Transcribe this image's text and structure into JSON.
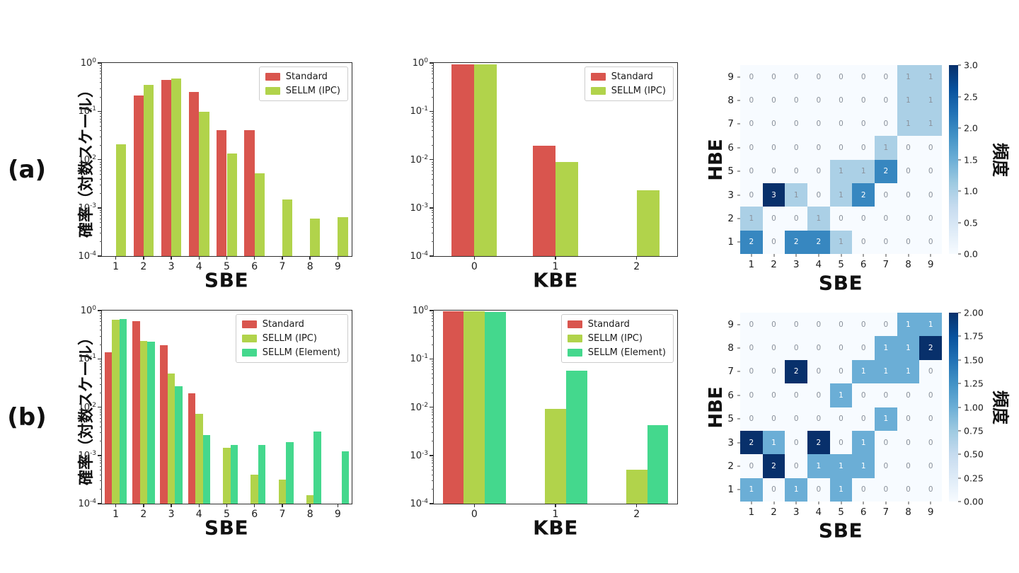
{
  "figure": {
    "row_a_label": "(a)",
    "row_b_label": "(b)",
    "ylabel_prob": "確率（対数スケール）"
  },
  "colors": {
    "standard_red": "#d9554e",
    "sellm_ipc_green": "#b1d34b",
    "sellm_element_teal": "#44d88d",
    "heat_text_dark": "#ffffff",
    "heat_text_light": "#8a919b",
    "blues_scale": [
      [
        0.0,
        "#f7fbff"
      ],
      [
        0.125,
        "#deebf7"
      ],
      [
        0.25,
        "#c6dbef"
      ],
      [
        0.375,
        "#9ecae1"
      ],
      [
        0.5,
        "#6baed6"
      ],
      [
        0.625,
        "#4292c6"
      ],
      [
        0.75,
        "#2171b5"
      ],
      [
        0.875,
        "#08519c"
      ],
      [
        1.0,
        "#08306b"
      ]
    ]
  },
  "chart_data": [
    {
      "id": "a_sbe",
      "type": "bar",
      "yscale": "log",
      "xlabel": "SBE",
      "ylabel": "確率（対数スケール）",
      "ylim": [
        0.0001,
        1
      ],
      "ytick_exponents": [
        0,
        -1,
        -2,
        -3,
        -4
      ],
      "categories": [
        "1",
        "2",
        "3",
        "4",
        "5",
        "6",
        "7",
        "8",
        "9"
      ],
      "bar_group_fraction": 0.73,
      "legend_position": "upper right",
      "series": [
        {
          "name": "Standard",
          "color": "#d9554e",
          "values": [
            0,
            0.21,
            0.44,
            0.25,
            0.04,
            0.04,
            0,
            0,
            0
          ]
        },
        {
          "name": "SELLM (IPC)",
          "color": "#b1d34b",
          "values": [
            0.021,
            0.35,
            0.48,
            0.098,
            0.0135,
            0.0052,
            0.0015,
            0.0006,
            0.00063
          ]
        }
      ]
    },
    {
      "id": "a_kbe",
      "type": "bar",
      "yscale": "log",
      "xlabel": "KBE",
      "ylabel": "確率（対数スケール）",
      "ylim": [
        0.0001,
        1
      ],
      "ytick_exponents": [
        0,
        -1,
        -2,
        -3,
        -4
      ],
      "categories": [
        "0",
        "1",
        "2"
      ],
      "bar_group_fraction": 0.56,
      "legend_position": "upper right",
      "series": [
        {
          "name": "Standard",
          "color": "#d9554e",
          "values": [
            0.95,
            0.019,
            0
          ]
        },
        {
          "name": "SELLM (IPC)",
          "color": "#b1d34b",
          "values": [
            0.95,
            0.0088,
            0.0023
          ]
        }
      ]
    },
    {
      "id": "a_heatmap",
      "type": "heatmap",
      "xlabel": "SBE",
      "ylabel": "HBE",
      "colorbar_label": "頻度",
      "x_labels": [
        "1",
        "2",
        "3",
        "4",
        "5",
        "6",
        "7",
        "8",
        "9"
      ],
      "y_labels": [
        "9",
        "8",
        "7",
        "6",
        "5",
        "3",
        "2",
        "1"
      ],
      "vmax": 3,
      "colorbar_ticks": [
        "3.0",
        "2.5",
        "2.0",
        "1.5",
        "1.0",
        "0.5",
        "0.0"
      ],
      "values": [
        [
          0,
          0,
          0,
          0,
          0,
          0,
          0,
          1,
          1
        ],
        [
          0,
          0,
          0,
          0,
          0,
          0,
          0,
          1,
          1
        ],
        [
          0,
          0,
          0,
          0,
          0,
          0,
          0,
          1,
          1
        ],
        [
          0,
          0,
          0,
          0,
          0,
          0,
          1,
          0,
          0
        ],
        [
          0,
          0,
          0,
          0,
          1,
          1,
          2,
          0,
          0
        ],
        [
          0,
          3,
          1,
          0,
          1,
          2,
          0,
          0,
          0
        ],
        [
          1,
          0,
          0,
          1,
          0,
          0,
          0,
          0,
          0
        ],
        [
          2,
          0,
          2,
          2,
          1,
          0,
          0,
          0,
          0
        ]
      ]
    },
    {
      "id": "b_sbe",
      "type": "bar",
      "yscale": "log",
      "xlabel": "SBE",
      "ylabel": "確率（対数スケール）",
      "ylim": [
        0.0001,
        1
      ],
      "ytick_exponents": [
        0,
        -1,
        -2,
        -3,
        -4
      ],
      "categories": [
        "1",
        "2",
        "3",
        "4",
        "5",
        "6",
        "7",
        "8",
        "9"
      ],
      "bar_group_fraction": 0.8,
      "legend_position": "upper right",
      "series": [
        {
          "name": "Standard",
          "color": "#d9554e",
          "values": [
            0.135,
            0.61,
            0.19,
            0.019,
            0,
            0,
            0,
            0,
            0
          ]
        },
        {
          "name": "SELLM (IPC)",
          "color": "#b1d34b",
          "values": [
            0.64,
            0.235,
            0.05,
            0.0072,
            0.00145,
            0.0004,
            0.00031,
            0.00015,
            0
          ]
        },
        {
          "name": "SELLM (Element)",
          "color": "#44d88d",
          "values": [
            0.67,
            0.225,
            0.027,
            0.0026,
            0.00165,
            0.00165,
            0.0019,
            0.0031,
            0.0012
          ]
        }
      ]
    },
    {
      "id": "b_kbe",
      "type": "bar",
      "yscale": "log",
      "xlabel": "KBE",
      "ylabel": "確率（対数スケール）",
      "ylim": [
        0.0001,
        1
      ],
      "ytick_exponents": [
        0,
        -1,
        -2,
        -3,
        -4
      ],
      "categories": [
        "0",
        "1",
        "2"
      ],
      "bar_group_fraction": 0.78,
      "legend_position": "upper right",
      "series": [
        {
          "name": "Standard",
          "color": "#d9554e",
          "values": [
            0.97,
            0,
            0
          ]
        },
        {
          "name": "SELLM (IPC)",
          "color": "#b1d34b",
          "values": [
            0.96,
            0.0092,
            0.00051
          ]
        },
        {
          "name": "SELLM (Element)",
          "color": "#44d88d",
          "values": [
            0.93,
            0.057,
            0.0043
          ]
        }
      ]
    },
    {
      "id": "b_heatmap",
      "type": "heatmap",
      "xlabel": "SBE",
      "ylabel": "HBE",
      "colorbar_label": "頻度",
      "x_labels": [
        "1",
        "2",
        "3",
        "4",
        "5",
        "6",
        "7",
        "8",
        "9"
      ],
      "y_labels": [
        "9",
        "8",
        "7",
        "6",
        "5",
        "3",
        "2",
        "1"
      ],
      "vmax": 2,
      "colorbar_ticks": [
        "2.00",
        "1.75",
        "1.50",
        "1.25",
        "1.00",
        "0.75",
        "0.50",
        "0.25",
        "0.00"
      ],
      "values": [
        [
          0,
          0,
          0,
          0,
          0,
          0,
          0,
          1,
          1
        ],
        [
          0,
          0,
          0,
          0,
          0,
          0,
          1,
          1,
          2
        ],
        [
          0,
          0,
          2,
          0,
          0,
          1,
          1,
          1,
          0
        ],
        [
          0,
          0,
          0,
          0,
          1,
          0,
          0,
          0,
          0
        ],
        [
          0,
          0,
          0,
          0,
          0,
          0,
          1,
          0,
          0
        ],
        [
          2,
          1,
          0,
          2,
          0,
          1,
          0,
          0,
          0
        ],
        [
          0,
          2,
          0,
          1,
          1,
          1,
          0,
          0,
          0
        ],
        [
          1,
          0,
          1,
          0,
          1,
          0,
          0,
          0,
          0
        ]
      ]
    }
  ]
}
